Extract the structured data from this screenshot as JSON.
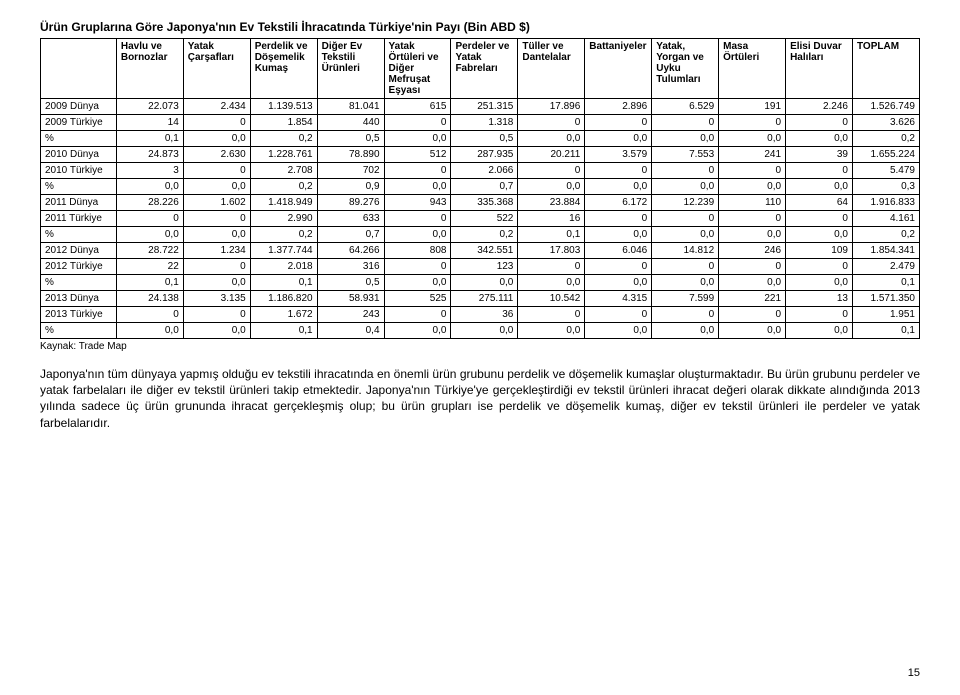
{
  "title": "Ürün Gruplarına Göre Japonya'nın Ev Tekstili İhracatında Türkiye'nin Payı (Bin ABD $)",
  "columns": [
    "",
    "Havlu ve Bornozlar",
    "Yatak Çarşafları",
    "Perdelik ve Döşemelik Kumaş",
    "Diğer Ev Tekstili Ürünleri",
    "Yatak Örtüleri ve Diğer Mefruşat Eşyası",
    "Perdeler ve Yatak Fabreları",
    "Tüller ve Dantelalar",
    "Battaniyeler",
    "Yatak, Yorgan ve Uyku Tulumları",
    "Masa Örtüleri",
    "Elisi Duvar Halıları",
    "TOPLAM"
  ],
  "rows": [
    {
      "label": "2009 Dünya",
      "cells": [
        "22.073",
        "2.434",
        "1.139.513",
        "81.041",
        "615",
        "251.315",
        "17.896",
        "2.896",
        "6.529",
        "191",
        "2.246",
        "1.526.749"
      ]
    },
    {
      "label": "2009 Türkiye",
      "cells": [
        "14",
        "0",
        "1.854",
        "440",
        "0",
        "1.318",
        "0",
        "0",
        "0",
        "0",
        "0",
        "3.626"
      ]
    },
    {
      "label": "%",
      "pct": true,
      "cells": [
        "0,1",
        "0,0",
        "0,2",
        "0,5",
        "0,0",
        "0,5",
        "0,0",
        "0,0",
        "0,0",
        "0,0",
        "0,0",
        "0,2"
      ]
    },
    {
      "label": "2010 Dünya",
      "cells": [
        "24.873",
        "2.630",
        "1.228.761",
        "78.890",
        "512",
        "287.935",
        "20.211",
        "3.579",
        "7.553",
        "241",
        "39",
        "1.655.224"
      ]
    },
    {
      "label": "2010 Türkiye",
      "cells": [
        "3",
        "0",
        "2.708",
        "702",
        "0",
        "2.066",
        "0",
        "0",
        "0",
        "0",
        "0",
        "5.479"
      ]
    },
    {
      "label": "%",
      "pct": true,
      "cells": [
        "0,0",
        "0,0",
        "0,2",
        "0,9",
        "0,0",
        "0,7",
        "0,0",
        "0,0",
        "0,0",
        "0,0",
        "0,0",
        "0,3"
      ]
    },
    {
      "label": "2011 Dünya",
      "cells": [
        "28.226",
        "1.602",
        "1.418.949",
        "89.276",
        "943",
        "335.368",
        "23.884",
        "6.172",
        "12.239",
        "110",
        "64",
        "1.916.833"
      ]
    },
    {
      "label": "2011 Türkiye",
      "cells": [
        "0",
        "0",
        "2.990",
        "633",
        "0",
        "522",
        "16",
        "0",
        "0",
        "0",
        "0",
        "4.161"
      ]
    },
    {
      "label": "%",
      "pct": true,
      "cells": [
        "0,0",
        "0,0",
        "0,2",
        "0,7",
        "0,0",
        "0,2",
        "0,1",
        "0,0",
        "0,0",
        "0,0",
        "0,0",
        "0,2"
      ]
    },
    {
      "label": "2012 Dünya",
      "cells": [
        "28.722",
        "1.234",
        "1.377.744",
        "64.266",
        "808",
        "342.551",
        "17.803",
        "6.046",
        "14.812",
        "246",
        "109",
        "1.854.341"
      ]
    },
    {
      "label": "2012 Türkiye",
      "cells": [
        "22",
        "0",
        "2.018",
        "316",
        "0",
        "123",
        "0",
        "0",
        "0",
        "0",
        "0",
        "2.479"
      ]
    },
    {
      "label": "%",
      "pct": true,
      "cells": [
        "0,1",
        "0,0",
        "0,1",
        "0,5",
        "0,0",
        "0,0",
        "0,0",
        "0,0",
        "0,0",
        "0,0",
        "0,0",
        "0,1"
      ]
    },
    {
      "label": "2013 Dünya",
      "cells": [
        "24.138",
        "3.135",
        "1.186.820",
        "58.931",
        "525",
        "275.111",
        "10.542",
        "4.315",
        "7.599",
        "221",
        "13",
        "1.571.350"
      ]
    },
    {
      "label": "2013 Türkiye",
      "cells": [
        "0",
        "0",
        "1.672",
        "243",
        "0",
        "36",
        "0",
        "0",
        "0",
        "0",
        "0",
        "1.951"
      ]
    },
    {
      "label": "%",
      "pct": true,
      "cells": [
        "0,0",
        "0,0",
        "0,1",
        "0,4",
        "0,0",
        "0,0",
        "0,0",
        "0,0",
        "0,0",
        "0,0",
        "0,0",
        "0,1"
      ]
    }
  ],
  "source": "Kaynak: Trade Map",
  "paragraph": "Japonya'nın tüm dünyaya yapmış olduğu ev tekstili ihracatında en önemli ürün grubunu perdelik ve döşemelik kumaşlar oluşturmaktadır. Bu ürün grubunu perdeler ve yatak farbelaları ile diğer ev tekstil ürünleri takip etmektedir. Japonya'nın Türkiye'ye gerçekleştirdiği ev tekstil ürünleri ihracat değeri olarak dikkate alındığında 2013 yılında sadece üç ürün grununda ihracat gerçekleşmiş olup; bu ürün grupları ise perdelik ve döşemelik kumaş, diğer ev tekstil ürünleri ile perdeler ve yatak farbelalarıdır.",
  "page_number": "15"
}
